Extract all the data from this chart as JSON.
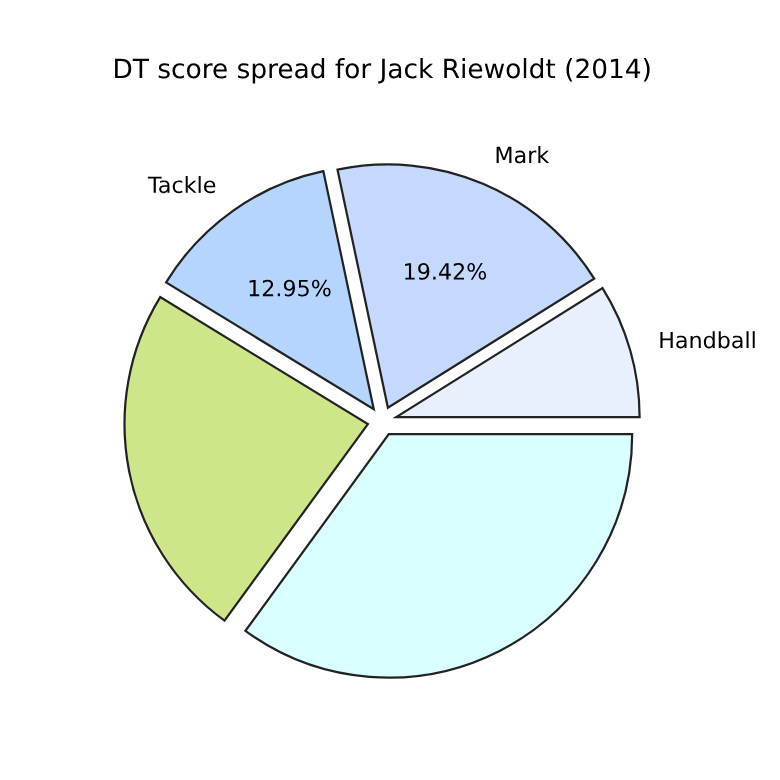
{
  "chart_data": {
    "type": "pie",
    "title": "DT score spread for Jack Riewoldt (2014)",
    "categories": [
      "Handball",
      "Mark",
      "Tackle",
      null,
      null
    ],
    "values": [
      8.9,
      19.42,
      12.95,
      23.7,
      35.03
    ],
    "colors": [
      "#e8f0fe",
      "#c5d8fe",
      "#b5d5ff",
      "#cde68a",
      "#d9fffe"
    ],
    "value_labels": [
      null,
      "19.42%",
      "12.95%",
      null,
      null
    ]
  }
}
